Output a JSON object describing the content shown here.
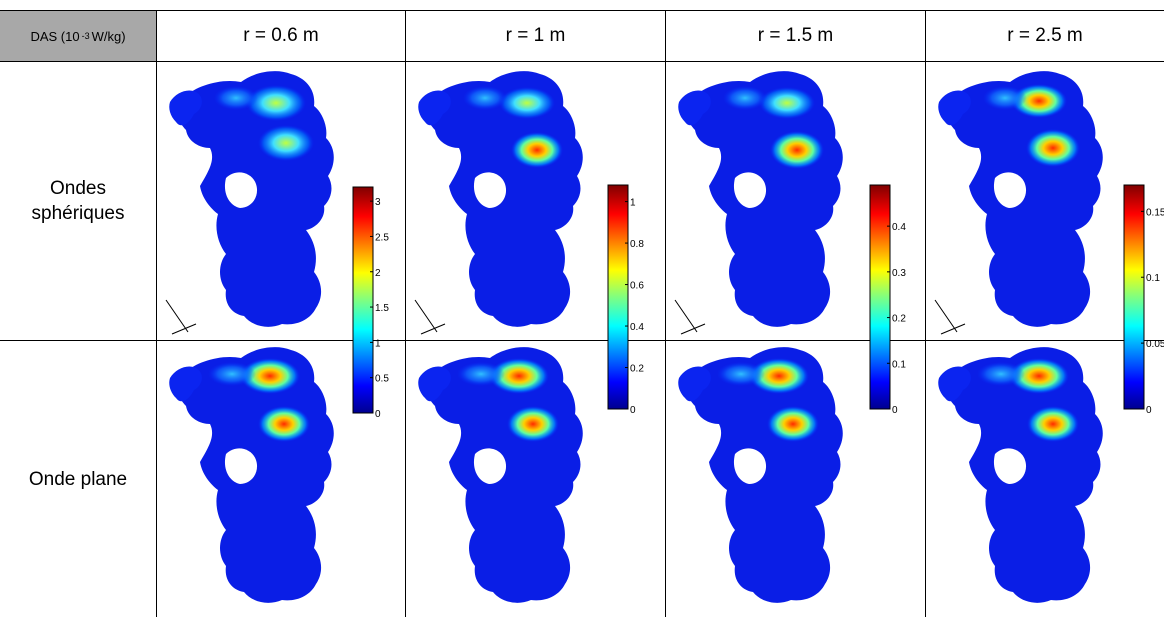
{
  "table": {
    "corner_label_main": "DAS (10",
    "corner_label_exp": "-3",
    "corner_label_unit": "W/kg)",
    "columns": [
      "r = 0.6 m",
      "r = 1 m",
      "r = 1.5 m",
      "r = 2.5 m"
    ],
    "rows": [
      "Ondes\nsphériques",
      "Onde plane"
    ]
  },
  "colorbars": [
    {
      "max": 3.2,
      "ticks": [
        "3",
        "2.5",
        "2",
        "1.5",
        "1",
        "0.5",
        "0"
      ]
    },
    {
      "max": 1.08,
      "ticks": [
        "1",
        "0.8",
        "0.6",
        "0.4",
        "0.2",
        "0"
      ]
    },
    {
      "max": 0.49,
      "ticks": [
        "0.4",
        "0.3",
        "0.2",
        "0.1",
        "0"
      ]
    },
    {
      "max": 0.17,
      "ticks": [
        "0.15",
        "0.1",
        "0.05",
        "0"
      ]
    }
  ],
  "colormap": "jet"
}
